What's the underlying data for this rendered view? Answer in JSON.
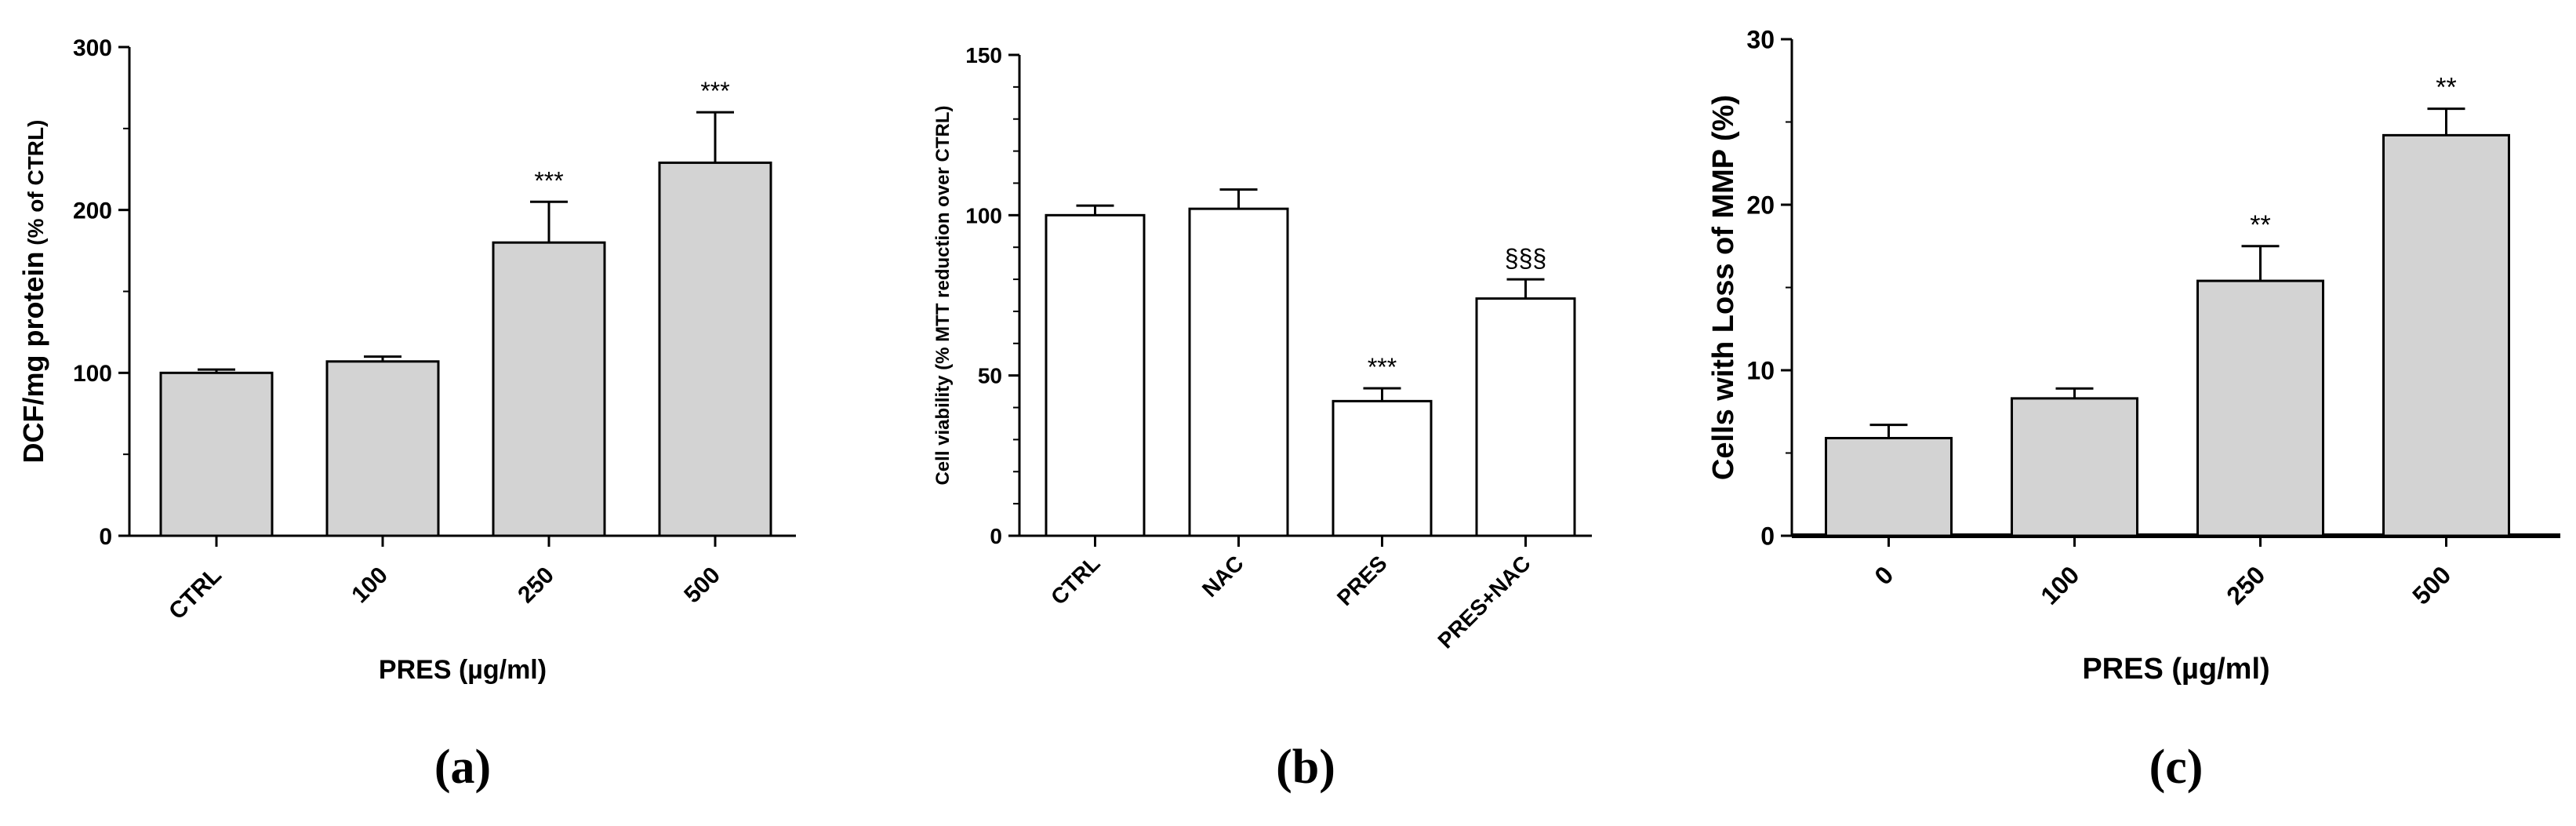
{
  "chart_data": [
    {
      "panel": "(a)",
      "type": "bar",
      "categories": [
        "CTRL",
        "100",
        "250",
        "500"
      ],
      "values": [
        100,
        107,
        180,
        229
      ],
      "errors": [
        2,
        3,
        25,
        31
      ],
      "significance": [
        "",
        "",
        "***",
        "***"
      ],
      "xlabel": "PRES (µg/ml)",
      "ylabel_main": "DCF/mg protein",
      "ylabel_sub": " (% of CTRL)",
      "ylim": [
        0,
        300
      ],
      "yticks": [
        0,
        100,
        200,
        300
      ],
      "bar_color": "#d3d3d3",
      "grid": false
    },
    {
      "panel": "(b)",
      "type": "bar",
      "categories": [
        "CTRL",
        "NAC",
        "PRES",
        "PRES+NAC"
      ],
      "values": [
        100,
        102,
        42,
        74
      ],
      "errors": [
        3,
        6,
        4,
        6
      ],
      "significance": [
        "",
        "",
        "***",
        "§§§"
      ],
      "xlabel": "",
      "ylabel_main": "Cell viability (% MTT reduction over CTRL)",
      "ylabel_sub": "",
      "ylim": [
        0,
        150
      ],
      "yticks": [
        0,
        50,
        100,
        150
      ],
      "bar_color": "#ffffff",
      "grid": false
    },
    {
      "panel": "(c)",
      "type": "bar",
      "categories": [
        "0",
        "100",
        "250",
        "500"
      ],
      "values": [
        5.9,
        8.3,
        15.4,
        24.2
      ],
      "errors": [
        0.8,
        0.6,
        2.1,
        1.6
      ],
      "significance": [
        "",
        "",
        "**",
        "**"
      ],
      "xlabel": "PRES (µg/ml)",
      "ylabel_main": "Cells with Loss of MMP (%)",
      "ylabel_sub": "",
      "ylim": [
        0,
        30
      ],
      "yticks": [
        0,
        10,
        20,
        30
      ],
      "bar_color": "#d3d3d3",
      "grid": false
    }
  ]
}
